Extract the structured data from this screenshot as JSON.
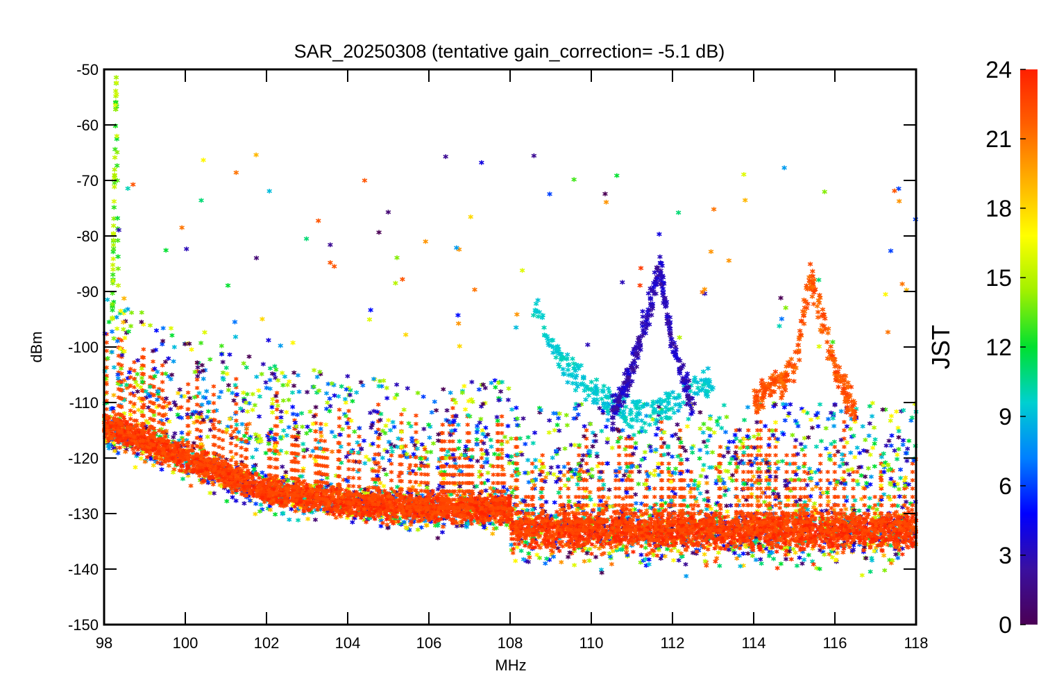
{
  "chart_data": {
    "type": "scatter",
    "title": "SAR_20250308 (tentative gain_correction= -5.1 dB)",
    "xlabel": "MHz",
    "ylabel": "dBm",
    "xlim": [
      98,
      118
    ],
    "ylim": [
      -150,
      -50
    ],
    "xticks": [
      "98",
      "100",
      "102",
      "104",
      "106",
      "108",
      "110",
      "112",
      "114",
      "116",
      "118"
    ],
    "yticks": [
      "-50",
      "-60",
      "-70",
      "-80",
      "-90",
      "-100",
      "-110",
      "-120",
      "-130",
      "-140",
      "-150"
    ],
    "grid": false,
    "colorbar": {
      "label": "JST",
      "range": [
        0,
        24
      ],
      "ticks": [
        "24",
        "21",
        "18",
        "15",
        "12",
        "9",
        "6",
        "3",
        "0"
      ],
      "colormap": "rainbow",
      "colors": [
        "#4b0055",
        "#3a10a0",
        "#0000ff",
        "#0080ff",
        "#00d0d0",
        "#00e030",
        "#a0f000",
        "#ffff00",
        "#ffb000",
        "#ff6000",
        "#ff2000"
      ]
    },
    "marker": "asterisk",
    "series_summary": [
      {
        "hours": "0-24",
        "description": "noise floor",
        "x": [
          98,
          100,
          102,
          104,
          106,
          108,
          108.05,
          110,
          112,
          114,
          116,
          118
        ],
        "y": [
          -114,
          -120,
          -126,
          -128,
          -129,
          -129,
          -133,
          -133,
          -133,
          -133,
          -133,
          -133
        ]
      },
      {
        "hours": "9-10",
        "description": "peak near 109-111 MHz",
        "x": [
          108.6,
          109,
          110,
          111,
          112,
          113
        ],
        "y": [
          -92,
          -100,
          -108,
          -112,
          -110,
          -106
        ]
      },
      {
        "hours": "2-4",
        "description": "peak near 111.7 MHz",
        "x": [
          110.5,
          111,
          111.7,
          112,
          112.5
        ],
        "y": [
          -112,
          -104,
          -86,
          -100,
          -110
        ]
      },
      {
        "hours": "21-23",
        "description": "peak near 115.4 MHz",
        "x": [
          114,
          115,
          115.4,
          116,
          116.5
        ],
        "y": [
          -110,
          -104,
          -87,
          -104,
          -112
        ]
      },
      {
        "hours": "12-16",
        "description": "strong peak near 98.3 MHz",
        "x": [
          98.2,
          98.3,
          98.35
        ],
        "y": [
          -95,
          -50,
          -90
        ]
      }
    ]
  }
}
